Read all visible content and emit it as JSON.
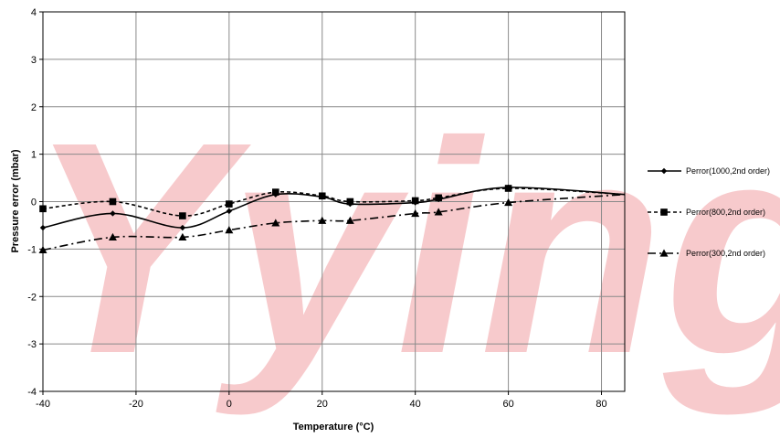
{
  "watermark": "Yying",
  "chart_data": {
    "type": "line",
    "title": "",
    "xlabel": "Temperature (°C)",
    "ylabel": "Pressure error (mbar)",
    "xlim": [
      -40,
      85
    ],
    "ylim": [
      -4,
      4
    ],
    "xticks": [
      -40,
      -20,
      0,
      20,
      40,
      60,
      80
    ],
    "yticks": [
      -4,
      -3,
      -2,
      -1,
      0,
      1,
      2,
      3,
      4
    ],
    "grid": true,
    "legend_position": "right",
    "series": [
      {
        "name": "Perror(1000,2nd order)",
        "marker": "diamond",
        "dash": "solid",
        "x": [
          -40,
          -25,
          -10,
          0,
          10,
          20,
          26,
          40,
          45,
          60,
          85
        ],
        "y": [
          -0.55,
          -0.25,
          -0.55,
          -0.2,
          0.15,
          0.1,
          -0.05,
          -0.02,
          0.05,
          0.3,
          0.15
        ]
      },
      {
        "name": "Perror(800,2nd order)",
        "marker": "square",
        "dash": "dashed",
        "x": [
          -40,
          -25,
          -10,
          0,
          10,
          20,
          26,
          40,
          45,
          60,
          85
        ],
        "y": [
          -0.15,
          0.0,
          -0.3,
          -0.05,
          0.2,
          0.12,
          0.0,
          0.02,
          0.08,
          0.28,
          0.15
        ]
      },
      {
        "name": "Perror(300,2nd order)",
        "marker": "triangle",
        "dash": "dashdot",
        "x": [
          -40,
          -25,
          -10,
          0,
          10,
          20,
          26,
          40,
          45,
          60,
          85
        ],
        "y": [
          -1.02,
          -0.75,
          -0.75,
          -0.6,
          -0.45,
          -0.4,
          -0.4,
          -0.25,
          -0.22,
          -0.02,
          0.15
        ]
      }
    ]
  }
}
